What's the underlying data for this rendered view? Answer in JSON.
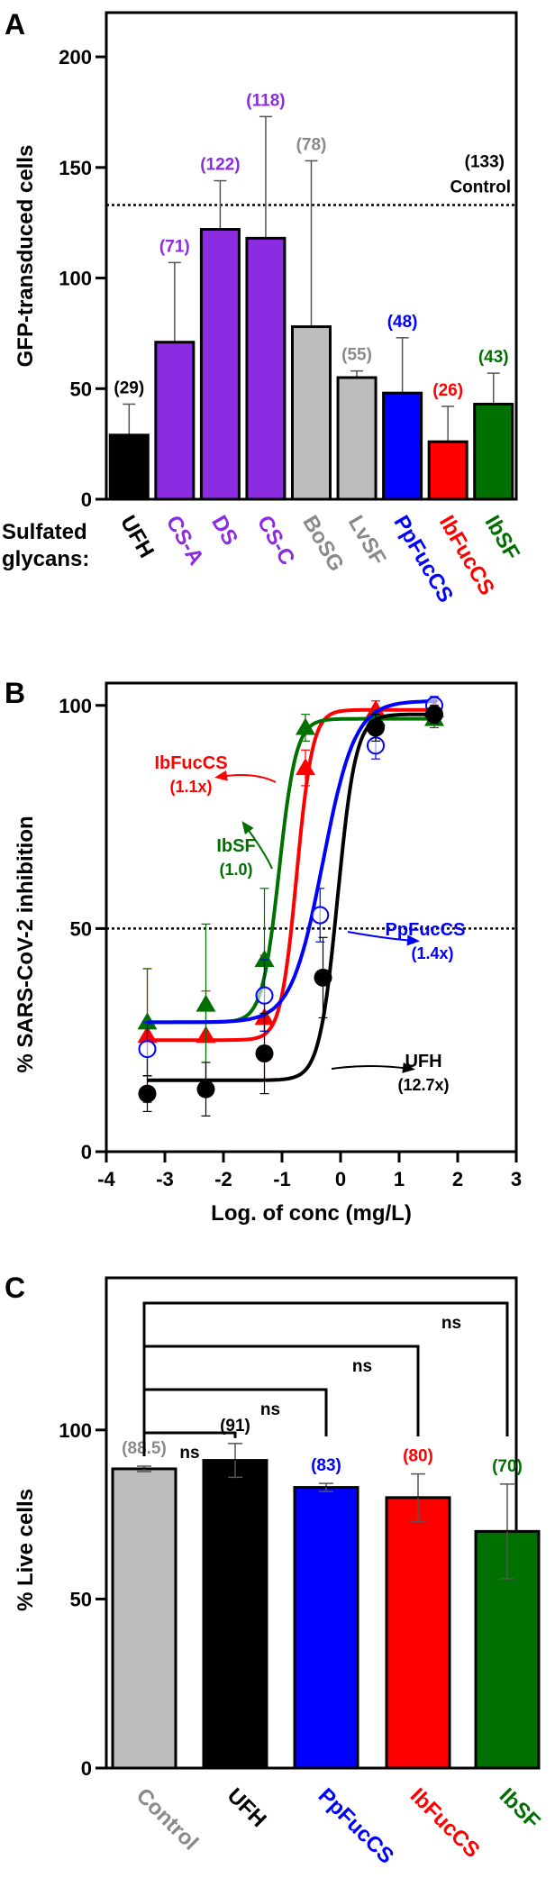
{
  "chart_data": [
    {
      "panel": "A",
      "type": "bar",
      "ylabel": "GFP-transduced cells",
      "xaxis_prefix": [
        "Sulfated",
        "glycans:"
      ],
      "ylim": [
        0,
        220
      ],
      "yticks": [
        0,
        50,
        100,
        150,
        200
      ],
      "reference_line": {
        "value": 133,
        "label": "(133)",
        "name": "Control"
      },
      "categories": [
        "UFH",
        "CS-A",
        "DS",
        "CS-C",
        "BoSG",
        "LvSF",
        "PpFucCS",
        "IbFucCS",
        "IbSF"
      ],
      "values": [
        29,
        71,
        122,
        118,
        78,
        55,
        48,
        26,
        43
      ],
      "errors": [
        14,
        36,
        22,
        55,
        75,
        3,
        25,
        16,
        14
      ],
      "value_labels": [
        "(29)",
        "(71)",
        "(122)",
        "(118)",
        "(78)",
        "(55)",
        "(48)",
        "(26)",
        "(43)"
      ],
      "colors": [
        "#000000",
        "#8b2be2",
        "#8b2be2",
        "#8b2be2",
        "#bdbdbd",
        "#bdbdbd",
        "#0000ff",
        "#ff0000",
        "#007000"
      ],
      "label_colors": [
        "#000000",
        "#8b2be2",
        "#8b2be2",
        "#8b2be2",
        "#8a8a8a",
        "#8a8a8a",
        "#0000ff",
        "#ff0000",
        "#007000"
      ]
    },
    {
      "panel": "B",
      "type": "line",
      "xlabel": "Log. of conc (mg/L)",
      "ylabel": "% SARS-CoV-2 inhibition",
      "xlim": [
        -4,
        3
      ],
      "ylim": [
        0,
        105
      ],
      "xticks": [
        -4,
        -3,
        -2,
        -1,
        0,
        1,
        2,
        3
      ],
      "yticks": [
        0,
        50,
        100
      ],
      "reference_line": {
        "value": 50
      },
      "series": [
        {
          "name": "IbFucCS",
          "annotation": "(1.1x)",
          "color": "#ff0000",
          "marker": "triangle",
          "x": [
            -3.3,
            -2.3,
            -1.3,
            -0.6,
            0.6,
            1.6
          ],
          "y": [
            26,
            26,
            30,
            86,
            99,
            99
          ],
          "errors": [
            15,
            10,
            14,
            4,
            2,
            2
          ],
          "fit": {
            "bottom": 25,
            "top": 99,
            "log_ec50": -0.75,
            "hill": 3.2
          }
        },
        {
          "name": "IbSF",
          "annotation": "(1.0)",
          "color": "#007000",
          "marker": "triangle",
          "x": [
            -3.3,
            -2.3,
            -1.3,
            -0.6,
            0.6,
            1.6
          ],
          "y": [
            29,
            33,
            43,
            95,
            97,
            97
          ],
          "errors": [
            12,
            18,
            16,
            3,
            2,
            2
          ],
          "fit": {
            "bottom": 29,
            "top": 97,
            "log_ec50": -1.05,
            "hill": 3.0
          }
        },
        {
          "name": "PpFucCS",
          "annotation": "(1.4x)",
          "color": "#0000ff",
          "marker": "circle-open",
          "x": [
            -3.3,
            -1.3,
            -0.35,
            0.6,
            1.6
          ],
          "y": [
            23,
            35,
            53,
            91,
            100
          ],
          "errors": [
            6,
            8,
            6,
            3,
            2
          ],
          "fit": {
            "bottom": 29,
            "top": 101,
            "log_ec50": -0.3,
            "hill": 1.6
          }
        },
        {
          "name": "UFH",
          "annotation": "(12.7x)",
          "color": "#000000",
          "marker": "circle",
          "x": [
            -3.3,
            -2.3,
            -1.3,
            -0.3,
            0.6,
            1.6
          ],
          "y": [
            13,
            14,
            22,
            39,
            95,
            98
          ],
          "errors": [
            4,
            6,
            9,
            9,
            3,
            2
          ],
          "fit": {
            "bottom": 16,
            "top": 98,
            "log_ec50": -0.05,
            "hill": 2.8
          }
        }
      ]
    },
    {
      "panel": "C",
      "type": "bar",
      "ylabel": "% Live cells",
      "ylim": [
        0,
        145
      ],
      "yticks": [
        0,
        50,
        100
      ],
      "categories": [
        "Control",
        "UFH",
        "PpFucCS",
        "IbFucCS",
        "IbSF"
      ],
      "values": [
        88.5,
        91,
        83,
        80,
        70
      ],
      "errors": [
        0.8,
        5,
        1.2,
        7,
        14
      ],
      "value_labels": [
        "(88.5)",
        "(91)",
        "(83)",
        "(80)",
        "(70)"
      ],
      "colors": [
        "#bdbdbd",
        "#000000",
        "#0000ff",
        "#ff0000",
        "#007000"
      ],
      "label_colors": [
        "#8a8a8a",
        "#000000",
        "#0000ff",
        "#ff0000",
        "#007000"
      ],
      "significance": [
        {
          "to_index": 1,
          "label": "ns"
        },
        {
          "to_index": 2,
          "label": "ns"
        },
        {
          "to_index": 3,
          "label": "ns"
        },
        {
          "to_index": 4,
          "label": "ns"
        }
      ]
    }
  ]
}
